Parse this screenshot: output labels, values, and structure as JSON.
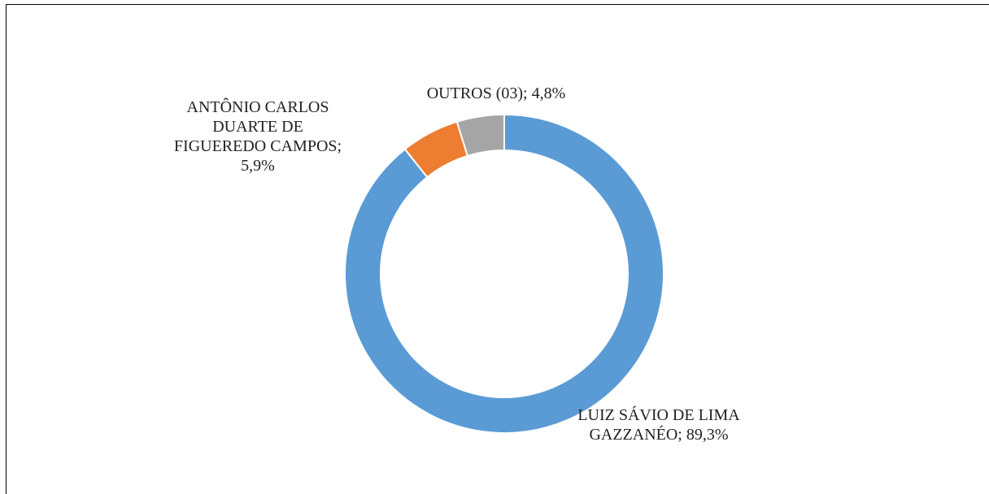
{
  "chart_data": {
    "type": "donut",
    "categories": [
      "LUIZ SÁVIO DE LIMA GAZZANÉO;",
      "ANTÔNIO CARLOS DUARTE DE FIGUEREDO CAMPOS;",
      "OUTROS (03);"
    ],
    "values": [
      89.3,
      5.9,
      4.8
    ],
    "value_labels": [
      "89,3%",
      "5,9%",
      "4,8%"
    ],
    "colors": [
      "#5b9bd5",
      "#ed7d31",
      "#a5a5a5"
    ]
  }
}
